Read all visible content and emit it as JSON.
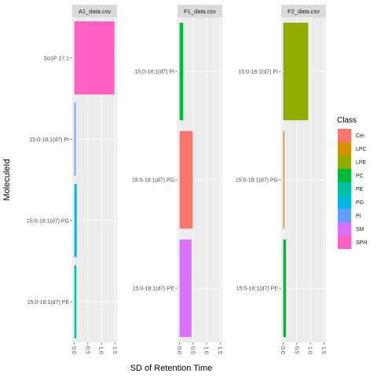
{
  "chart_data": {
    "type": "bar",
    "orientation": "horizontal",
    "xlabel": "SD of Retention Time",
    "ylabel": "MoleculeId",
    "xlim": [
      0,
      1.5
    ],
    "x_ticks": [
      0.0,
      0.5,
      1.0,
      1.5
    ],
    "x_tick_labels": [
      "0.0",
      "0.5",
      "1.0",
      "1.5"
    ],
    "grid": true,
    "legend": {
      "title": "Class",
      "position": "right",
      "entries": [
        {
          "label": "Cer",
          "color": "#F8766D"
        },
        {
          "label": "LPC",
          "color": "#D39200"
        },
        {
          "label": "LPE",
          "color": "#93AA00"
        },
        {
          "label": "PC",
          "color": "#00BA38"
        },
        {
          "label": "PE",
          "color": "#00C19F"
        },
        {
          "label": "PG",
          "color": "#00B9E3"
        },
        {
          "label": "PI",
          "color": "#619CFF"
        },
        {
          "label": "SM",
          "color": "#DB72FB"
        },
        {
          "label": "SPH",
          "color": "#FF61C3"
        }
      ]
    },
    "facets": [
      {
        "title": "A1_data.csv",
        "categories": [
          "So1P 17:1",
          "15:0-18:1(d7) PI",
          "15:0-18:1(d7) PG",
          "15:0-18:1(d7) PE"
        ],
        "values": [
          1.48,
          0.05,
          0.09,
          0.07
        ],
        "classes": [
          "SPH",
          "PI",
          "PG",
          "PE"
        ]
      },
      {
        "title": "F1_data.csv",
        "categories": [
          "15:0-18:1(d7) PI",
          "15:0-18:1(d7) PG",
          "15:0-18:1(d7) PE"
        ],
        "values": [
          0.13,
          0.48,
          0.44
        ],
        "classes": [
          "PC",
          "Cer",
          "SM"
        ]
      },
      {
        "title": "F2_data.csv",
        "categories": [
          "15:0-18:1(d7) PI",
          "15:0-18:1(d7) PG",
          "15:0-18:1(d7) PE"
        ],
        "values": [
          0.92,
          0.04,
          0.1
        ],
        "classes": [
          "LPE",
          "LPC",
          "PC"
        ]
      }
    ]
  }
}
